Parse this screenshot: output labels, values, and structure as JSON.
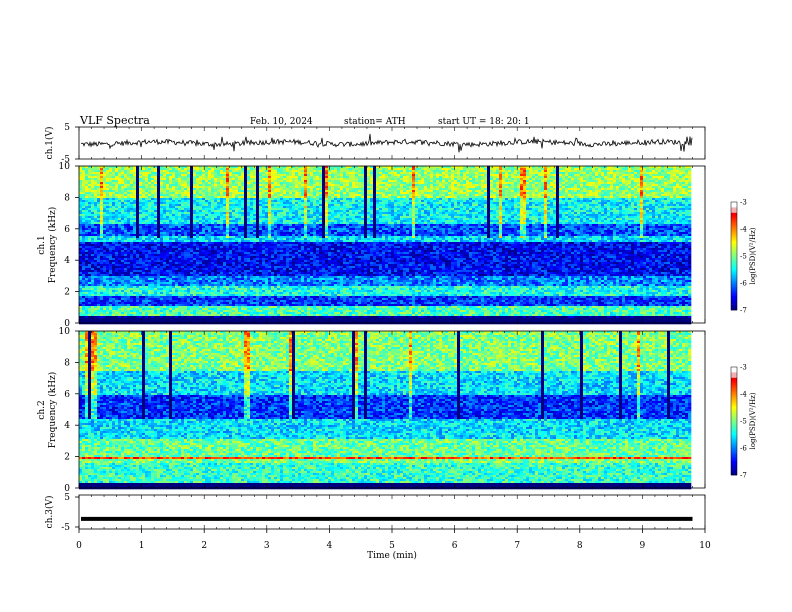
{
  "header": {
    "title": "VLF  Spectra",
    "date": "Feb. 10, 2024",
    "station": "station= ATH",
    "start": "start  UT  =   18: 20: 1"
  },
  "colors": {
    "jet": [
      "#00007f",
      "#0000ff",
      "#007fff",
      "#00ffff",
      "#7fff7f",
      "#ffff00",
      "#ff7f00",
      "#ff0000",
      "#7f0000"
    ],
    "cb_top": "#ffffff",
    "waveform": "#000000"
  },
  "chart_data": [
    {
      "type": "line",
      "name": "ch1-waveform",
      "ylabel": "ch.1(V)",
      "ylim": [
        -5,
        5
      ],
      "yticks": [
        "5",
        "-5"
      ],
      "xlim": [
        0,
        10
      ],
      "x": [
        0,
        9.8
      ],
      "description_values": {
        "baseline_v": 0,
        "noise_amplitude_v": 1
      }
    },
    {
      "type": "heatmap",
      "name": "ch1-spectrogram",
      "ylabel": "ch.1\nFrequency  (kHz)",
      "ylim": [
        0,
        10
      ],
      "yticks": [
        "0",
        "2",
        "4",
        "6",
        "8",
        "10"
      ],
      "xlim": [
        0,
        9.8
      ],
      "colorbar": {
        "label": "log(PSD)(V²/Hz)",
        "range": [
          -7,
          -3
        ],
        "ticks": [
          "-3",
          "-4",
          "-5",
          "-6",
          "-7"
        ]
      },
      "bands_khz": [
        {
          "f": [
            0.0,
            0.5
          ],
          "level": -7.0
        },
        {
          "f": [
            0.5,
            1.2
          ],
          "level": -5.2
        },
        {
          "f": [
            1.2,
            1.8
          ],
          "level": -6.3
        },
        {
          "f": [
            1.8,
            2.4
          ],
          "level": -5.4
        },
        {
          "f": [
            2.4,
            3.0
          ],
          "level": -6.0
        },
        {
          "f": [
            3.0,
            5.2
          ],
          "level": -6.5
        },
        {
          "f": [
            5.2,
            5.6
          ],
          "level": -5.6
        },
        {
          "f": [
            5.6,
            6.4
          ],
          "level": -6.2
        },
        {
          "f": [
            6.4,
            8.0
          ],
          "level": -5.5
        },
        {
          "f": [
            8.0,
            10.0
          ],
          "level": -4.9
        }
      ]
    },
    {
      "type": "heatmap",
      "name": "ch2-spectrogram",
      "ylabel": "ch.2\nFrequency  (kHz)",
      "ylim": [
        0,
        10
      ],
      "yticks": [
        "0",
        "2",
        "4",
        "6",
        "8",
        "10"
      ],
      "xlim": [
        0,
        9.8
      ],
      "colorbar": {
        "label": "log(PSD)(V²/Hz)",
        "range": [
          -7,
          -3
        ],
        "ticks": [
          "-3",
          "-4",
          "-5",
          "-6",
          "-7"
        ]
      },
      "bands_khz": [
        {
          "f": [
            0.0,
            0.3
          ],
          "level": -7.0
        },
        {
          "f": [
            0.3,
            1.6
          ],
          "level": -5.3
        },
        {
          "f": [
            1.6,
            1.9
          ],
          "level": -5.0
        },
        {
          "f": [
            1.9,
            2.1
          ],
          "level": -3.8
        },
        {
          "f": [
            2.1,
            3.2
          ],
          "level": -5.1
        },
        {
          "f": [
            3.2,
            4.4
          ],
          "level": -5.6
        },
        {
          "f": [
            4.4,
            6.0
          ],
          "level": -6.3
        },
        {
          "f": [
            6.0,
            7.5
          ],
          "level": -5.6
        },
        {
          "f": [
            7.5,
            10.0
          ],
          "level": -5.0
        }
      ]
    },
    {
      "type": "line",
      "name": "ch3-waveform",
      "ylabel": "ch.3(V)",
      "ylim": [
        -5,
        5
      ],
      "yticks": [
        "5",
        "-5"
      ],
      "xlim": [
        0,
        10
      ],
      "x": [
        0,
        9.8
      ],
      "description_values": {
        "baseline_v": -2.3
      }
    }
  ],
  "xaxis": {
    "label": "Time  (min)",
    "ticks": [
      "0",
      "1",
      "2",
      "3",
      "4",
      "5",
      "6",
      "7",
      "8",
      "9",
      "10"
    ]
  }
}
